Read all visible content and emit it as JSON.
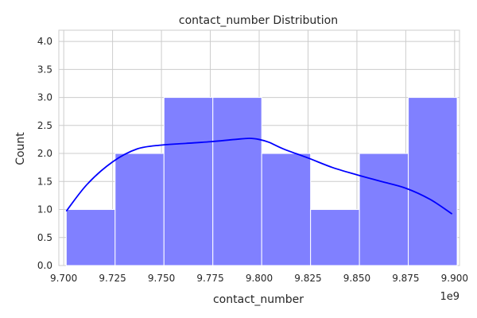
{
  "chart_data": {
    "type": "bar",
    "title": "contact_number Distribution",
    "xlabel": "contact_number",
    "ylabel": "Count",
    "x_offset_label": "1e9",
    "xlim": [
      9.6975,
      9.9025
    ],
    "ylim": [
      0,
      4.2
    ],
    "x_ticks": [
      9.7,
      9.725,
      9.75,
      9.775,
      9.8,
      9.825,
      9.85,
      9.875,
      9.9
    ],
    "x_tick_labels": [
      "9.700",
      "9.725",
      "9.750",
      "9.775",
      "9.800",
      "9.825",
      "9.850",
      "9.875",
      "9.900"
    ],
    "y_ticks": [
      0,
      0.5,
      1,
      1.5,
      2,
      2.5,
      3,
      3.5,
      4
    ],
    "y_tick_labels": [
      "0.0",
      "0.5",
      "1.0",
      "1.5",
      "2.0",
      "2.5",
      "3.0",
      "3.5",
      "4.0"
    ],
    "grid": true,
    "bins": [
      {
        "x0": 9.7013,
        "x1": 9.7263,
        "count": 1
      },
      {
        "x0": 9.7263,
        "x1": 9.7513,
        "count": 2
      },
      {
        "x0": 9.7513,
        "x1": 9.7763,
        "count": 3
      },
      {
        "x0": 9.7763,
        "x1": 9.8013,
        "count": 3
      },
      {
        "x0": 9.8013,
        "x1": 9.8263,
        "count": 2
      },
      {
        "x0": 9.8263,
        "x1": 9.8513,
        "count": 1
      },
      {
        "x0": 9.8513,
        "x1": 9.8763,
        "count": 2
      },
      {
        "x0": 9.8763,
        "x1": 9.9013,
        "count": 3
      }
    ],
    "kde": {
      "x": [
        9.7013,
        9.712,
        9.725,
        9.7375,
        9.75,
        9.7625,
        9.775,
        9.7875,
        9.795,
        9.8,
        9.805,
        9.8125,
        9.825,
        9.8375,
        9.85,
        9.8625,
        9.875,
        9.8875,
        9.8987
      ],
      "y": [
        0.97,
        1.45,
        1.85,
        2.08,
        2.15,
        2.18,
        2.21,
        2.25,
        2.27,
        2.25,
        2.2,
        2.08,
        1.92,
        1.75,
        1.62,
        1.5,
        1.38,
        1.18,
        0.92
      ]
    },
    "colors": {
      "bar_fill": "#8080ff",
      "bar_stroke": "#ffffff",
      "kde_line": "#0000ff",
      "grid": "#cccccc",
      "axis_text": "#262626"
    }
  }
}
